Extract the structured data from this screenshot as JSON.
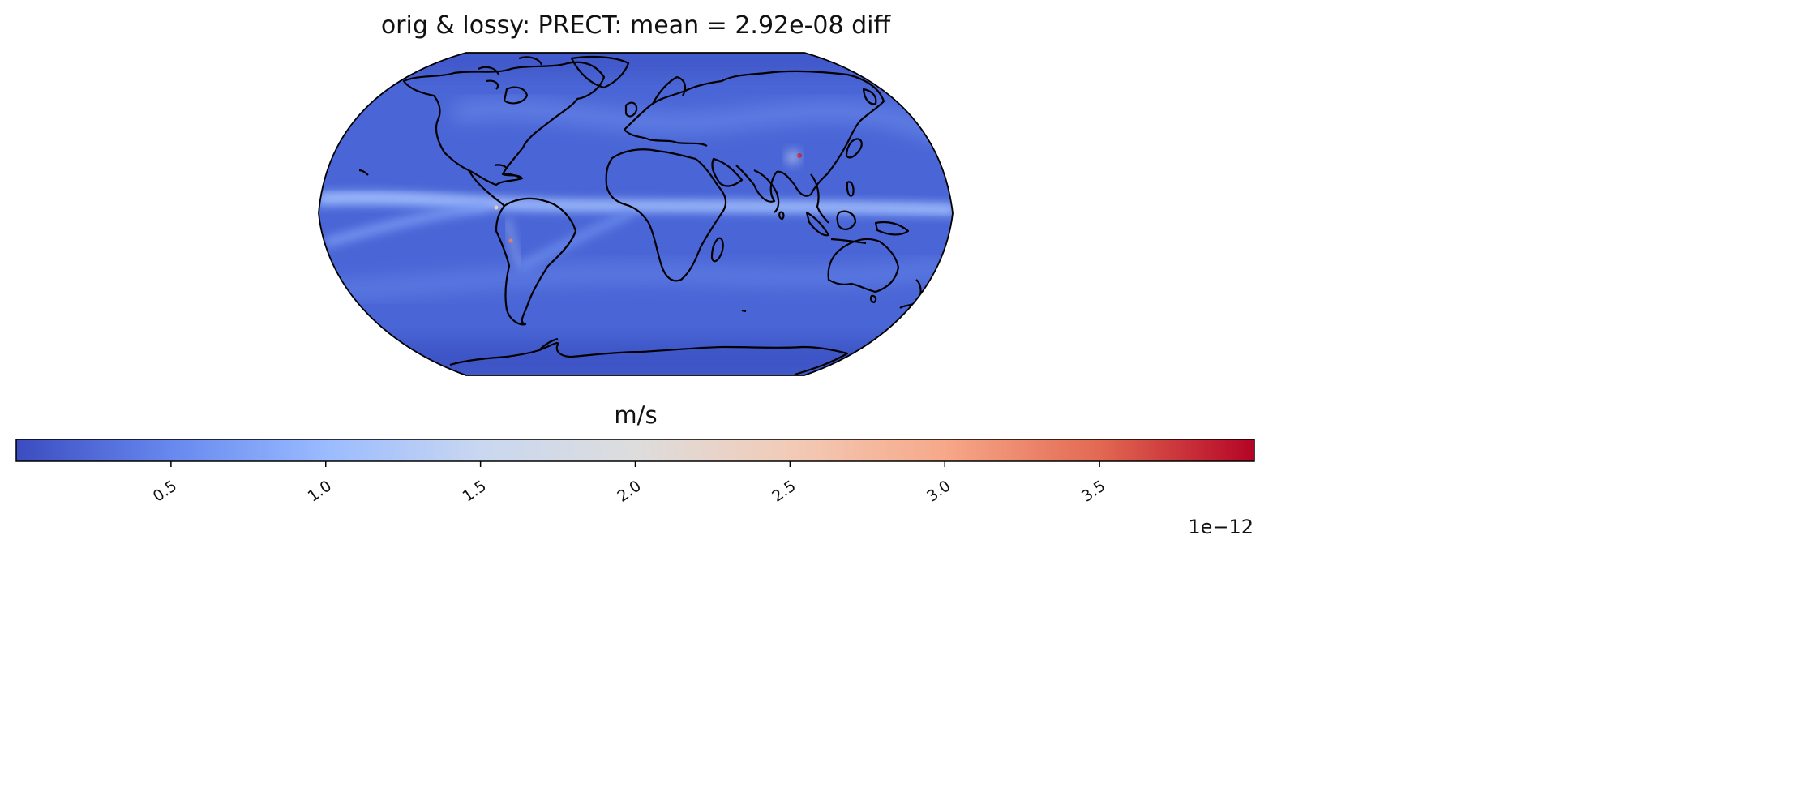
{
  "title": "orig & lossy: PRECT: mean =  2.92e-08 diff",
  "colorbar": {
    "label": "m/s",
    "offset_text": "1e−12",
    "colormap": "coolwarm",
    "range": [
      0.0,
      4.0
    ],
    "ticks": [
      0.5,
      1.0,
      1.5,
      2.0,
      2.5,
      3.0,
      3.5
    ],
    "tick_labels": [
      "0.5",
      "1.0",
      "1.5",
      "2.0",
      "2.5",
      "3.0",
      "3.5"
    ],
    "colors": [
      "#3b4cc0",
      "#6788ee",
      "#9abbff",
      "#c9d7f0",
      "#dddddd",
      "#f2cbb7",
      "#f7a889",
      "#e26952",
      "#b40426"
    ]
  },
  "map": {
    "projection": "Robinson",
    "ocean_base_color": "#4a66d6",
    "itcz_band_color": "#8fb0fb",
    "coastline_color": "#000000"
  }
}
